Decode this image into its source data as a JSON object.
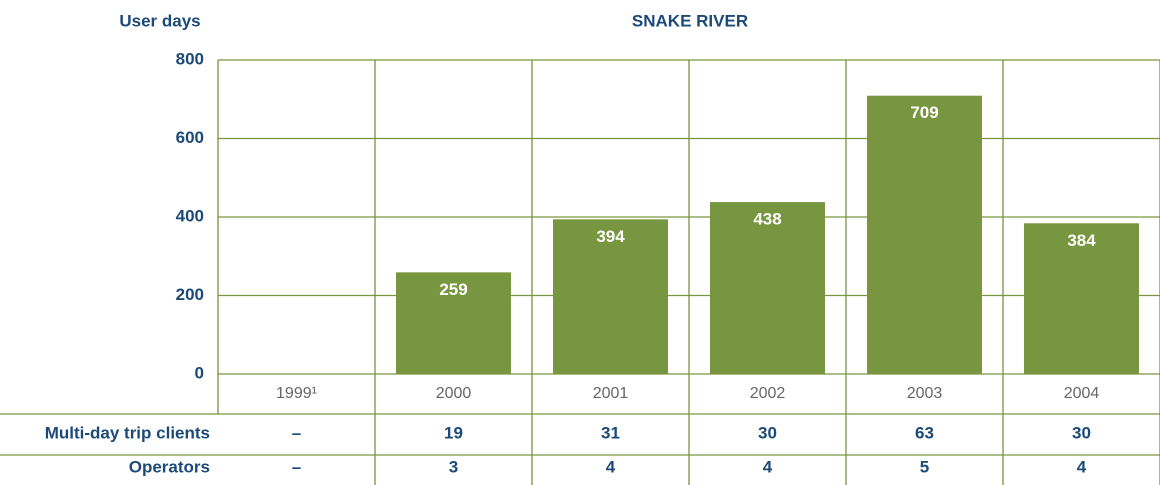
{
  "chart_data": {
    "type": "bar",
    "title": "SNAKE RIVER",
    "y_label": "User days",
    "categories": [
      "1999¹",
      "2000",
      "2001",
      "2002",
      "2003",
      "2004"
    ],
    "values": [
      null,
      259,
      394,
      438,
      709,
      384
    ],
    "color": "#77963f",
    "ylim": [
      0,
      800
    ],
    "yticks": [
      0,
      200,
      400,
      600,
      800
    ],
    "grid": true,
    "table": {
      "rows": [
        {
          "label": "Multi-day trip clients",
          "values": [
            "–",
            "19",
            "31",
            "30",
            "63",
            "30"
          ]
        },
        {
          "label": "Operators",
          "values": [
            "–",
            "3",
            "4",
            "4",
            "5",
            "4"
          ]
        }
      ]
    }
  }
}
